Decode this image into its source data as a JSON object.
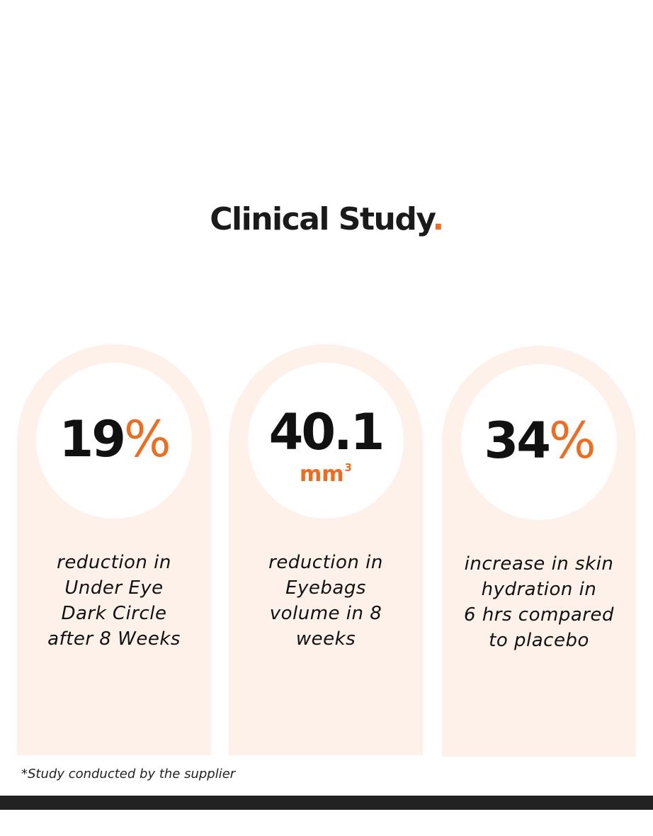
{
  "header": {
    "title": "Clinical Study",
    "title_dot": "."
  },
  "stats": [
    {
      "value": "19",
      "suffix": "%",
      "description_lines": [
        "reduction in",
        "Under Eye",
        "Dark Circle",
        "after 8 Weeks"
      ]
    },
    {
      "value": "40.1",
      "unit": "mm",
      "unit_exponent": "3",
      "description_lines": [
        "reduction in",
        "Eyebags",
        "volume in 8",
        "weeks"
      ]
    },
    {
      "value": "34",
      "suffix": "%",
      "description_lines": [
        "increase in skin",
        "hydration in",
        "6 hrs compared",
        "to placebo"
      ]
    }
  ],
  "footnote": "*Study conducted by the supplier",
  "colors": {
    "accent": "#f26b1d",
    "card_background": "#fdf1ea",
    "footer_bar": "#222222",
    "text": "#111111"
  }
}
